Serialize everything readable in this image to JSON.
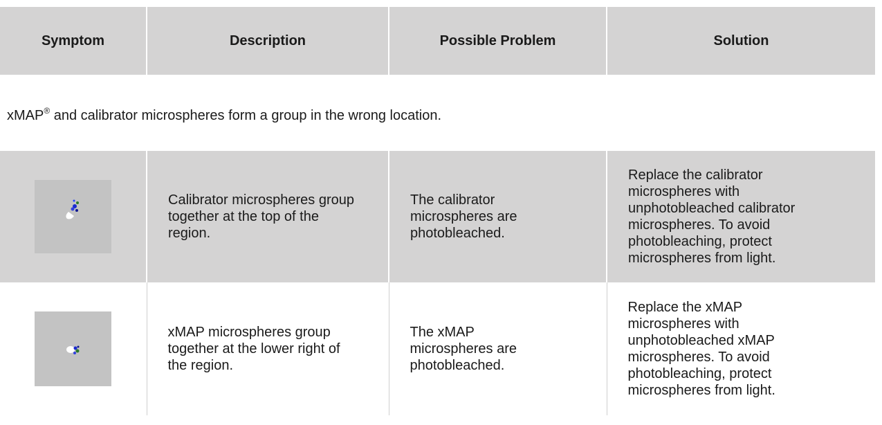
{
  "table": {
    "header": [
      "Symptom",
      "Description",
      "Possible Problem",
      "Solution"
    ],
    "section": {
      "lead": "xMAP",
      "mark": "®",
      "rest": " and calibrator microspheres form a group in the wrong location."
    },
    "rows": [
      [
        "Calibrator microspheres group together at the top of the region.",
        "The calibrator microspheres are photobleached.",
        "Replace the calibrator microspheres with unphotobleached calibrator microspheres. To avoid photobleaching, protect microspheres from light."
      ],
      [
        "xMAP microspheres group together at the lower right of the region.",
        "The xMAP microspheres are photobleached.",
        "Replace the xMAP microspheres with unphotobleached xMAP microspheres. To avoid photobleaching, protect microspheres from light."
      ]
    ]
  }
}
